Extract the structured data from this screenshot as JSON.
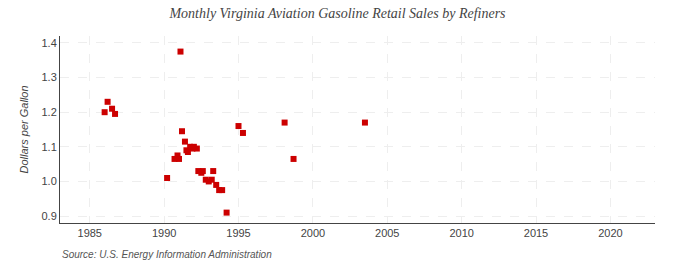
{
  "chart_data": {
    "type": "scatter",
    "title": "Monthly Virginia Aviation Gasoline Retail Sales by Refiners",
    "y_label": "Dollars per Gallon",
    "annotations": [
      "Source: U.S. Energy Information Administration"
    ],
    "x": [
      1986.0,
      1986.2,
      1986.5,
      1986.7,
      1990.2,
      1990.7,
      1990.9,
      1991.0,
      1991.2,
      1991.4,
      1991.5,
      1991.6,
      1991.75,
      1991.1,
      1991.9,
      1992.0,
      1992.2,
      1992.3,
      1992.5,
      1992.6,
      1992.8,
      1993.0,
      1993.2,
      1993.3,
      1993.5,
      1993.7,
      1993.9,
      1994.2,
      1995.0,
      1995.3,
      1998.1,
      1998.7,
      2003.5
    ],
    "values": [
      1.2,
      1.23,
      1.21,
      1.195,
      1.01,
      1.065,
      1.075,
      1.065,
      1.145,
      1.115,
      1.09,
      1.085,
      1.1,
      1.375,
      1.095,
      1.1,
      1.095,
      1.03,
      1.025,
      1.03,
      1.005,
      1.0,
      1.005,
      1.03,
      0.99,
      0.975,
      0.975,
      0.91,
      1.16,
      1.14,
      1.17,
      1.065,
      1.17
    ],
    "color": "#cc0000",
    "marker": "square",
    "xlim": [
      1983,
      2023
    ],
    "ylim": [
      0.88,
      1.42
    ],
    "xticks": [
      1985,
      1990,
      1995,
      2000,
      2005,
      2010,
      2015,
      2020
    ],
    "yticks": [
      0.9,
      {
        "value": 1.0,
        "label": "1.0"
      },
      1.1,
      1.2,
      1.3,
      1.4
    ],
    "grid": true
  }
}
